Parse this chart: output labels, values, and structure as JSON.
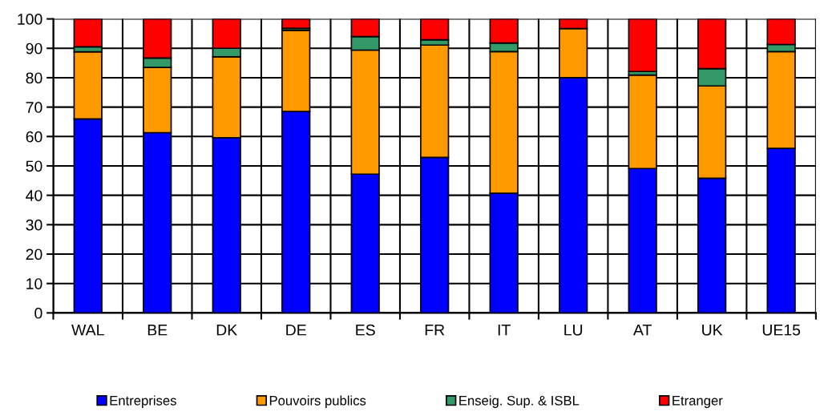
{
  "chart_data": {
    "type": "bar",
    "stacked": true,
    "categories": [
      "WAL",
      "BE",
      "DK",
      "DE",
      "ES",
      "FR",
      "IT",
      "LU",
      "AT",
      "UK",
      "UE15"
    ],
    "series": [
      {
        "name": "Entreprises",
        "color": "#0000ff",
        "values": [
          66,
          61.3,
          59.6,
          68.5,
          47.2,
          52.9,
          40.7,
          80,
          49.1,
          45.8,
          56
        ]
      },
      {
        "name": "Pouvoirs publics",
        "color": "#ff9900",
        "values": [
          22.8,
          22.2,
          27.5,
          27.6,
          42.2,
          38.2,
          48.2,
          16.7,
          31.8,
          31.4,
          32.9
        ]
      },
      {
        "name": "Enseig. Sup. & ISBL",
        "color": "#339966",
        "values": [
          1.7,
          3.2,
          2.9,
          0.7,
          4.6,
          1.8,
          2.9,
          null,
          1.2,
          5.9,
          2.4
        ]
      },
      {
        "name": "Etranger",
        "color": "#ff0000",
        "values": [
          9.5,
          13.3,
          10,
          3.2,
          6,
          7.1,
          8.2,
          3.3,
          17.9,
          16.9,
          8.7
        ]
      }
    ],
    "ylim": [
      0,
      100
    ],
    "yticks": [
      0,
      10,
      20,
      30,
      40,
      50,
      60,
      70,
      80,
      90,
      100
    ],
    "grid": true,
    "legend": "bottom"
  }
}
